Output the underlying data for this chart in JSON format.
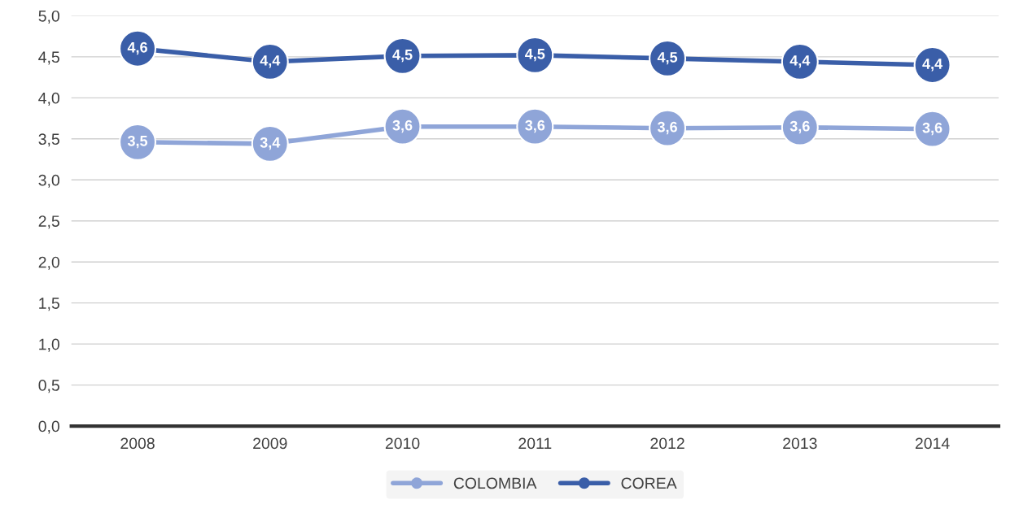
{
  "chart_data": {
    "type": "line",
    "categories": [
      "2008",
      "2009",
      "2010",
      "2011",
      "2012",
      "2013",
      "2014"
    ],
    "series": [
      {
        "name": "COLOMBIA",
        "color": "#8fa5d8",
        "values": [
          3.46,
          3.44,
          3.65,
          3.65,
          3.63,
          3.64,
          3.62
        ],
        "value_labels": [
          "3,5",
          "3,4",
          "3,6",
          "3,6",
          "3,6",
          "3,6",
          "3,6"
        ]
      },
      {
        "name": "COREA",
        "color": "#3a5ea8",
        "values": [
          4.6,
          4.44,
          4.51,
          4.52,
          4.48,
          4.44,
          4.4
        ],
        "value_labels": [
          "4,6",
          "4,4",
          "4,5",
          "4,5",
          "4,5",
          "4,4",
          "4,4"
        ]
      }
    ],
    "ylim": [
      0,
      5
    ],
    "yticks": [
      {
        "value": 0,
        "label": "0,0"
      },
      {
        "value": 0.5,
        "label": "0,5"
      },
      {
        "value": 1,
        "label": "1,0"
      },
      {
        "value": 1.5,
        "label": "1,5"
      },
      {
        "value": 2,
        "label": "2,0"
      },
      {
        "value": 2.5,
        "label": "2,5"
      },
      {
        "value": 3,
        "label": "3,0"
      },
      {
        "value": 3.5,
        "label": "3,5"
      },
      {
        "value": 4,
        "label": "4,0"
      },
      {
        "value": 4.5,
        "label": "4,5"
      },
      {
        "value": 5,
        "label": "5,0"
      }
    ],
    "grid": "y",
    "legend": "bottom",
    "marker": "circle",
    "line_style": "solid"
  }
}
